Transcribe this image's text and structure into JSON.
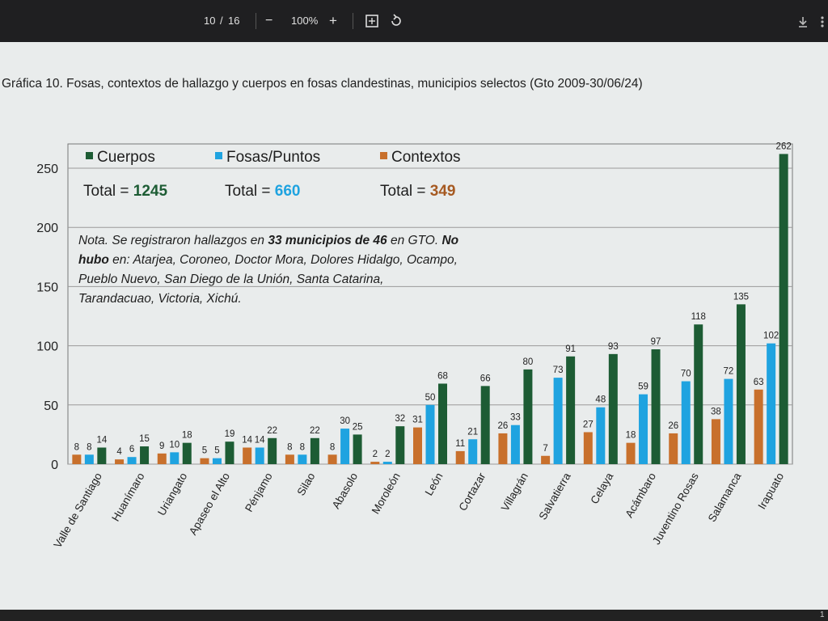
{
  "viewer": {
    "page_current": "10",
    "page_sep": "/",
    "page_total": "16",
    "zoom_out": "−",
    "zoom_level": "100%",
    "zoom_in": "+",
    "corner_digit": "1"
  },
  "chart_data": {
    "type": "bar",
    "title": "Gráfica 10. Fosas, contextos de hallazgo y cuerpos en fosas clandestinas, municipios selectos (Gto 2009-30/06/24)",
    "ylim": [
      0,
      270
    ],
    "yticks": [
      0,
      50,
      100,
      150,
      200,
      250
    ],
    "grid": true,
    "legend_position": "top-left",
    "categories": [
      "Valle de Santiago",
      "Huanímaro",
      "Uriangato",
      "Apaseo el Alto",
      "Pénjamo",
      "Silao",
      "Abasolo",
      "Moroleón",
      "León",
      "Cortazar",
      "Villagrán",
      "Salvatierra",
      "Celaya",
      "Acámbaro",
      "Juventino Rosas",
      "Salamanca",
      "Irapuato"
    ],
    "series": [
      {
        "name": "Contextos",
        "color": "#c8702c",
        "values": [
          8,
          4,
          9,
          5,
          14,
          8,
          8,
          2,
          31,
          11,
          26,
          7,
          27,
          18,
          26,
          38,
          63
        ]
      },
      {
        "name": "Fosas/Puntos",
        "color": "#1fa3e0",
        "values": [
          8,
          6,
          10,
          5,
          14,
          8,
          30,
          2,
          50,
          21,
          33,
          73,
          48,
          59,
          70,
          72,
          102
        ]
      },
      {
        "name": "Cuerpos",
        "color": "#1d5c34",
        "values": [
          14,
          15,
          18,
          19,
          22,
          22,
          25,
          32,
          68,
          66,
          80,
          91,
          93,
          97,
          118,
          135,
          262
        ]
      }
    ],
    "legend": [
      {
        "name": "Cuerpos",
        "color": "#1d5c34"
      },
      {
        "name": "Fosas/Puntos",
        "color": "#1fa3e0"
      },
      {
        "name": "Contextos",
        "color": "#c8702c"
      }
    ],
    "totals": [
      {
        "label": "Total = ",
        "value": "1245",
        "color": "#1d5c34"
      },
      {
        "label": "Total = ",
        "value": "660",
        "color": "#1fa3e0"
      },
      {
        "label": "Total = ",
        "value": "349",
        "color": "#a65a22"
      }
    ],
    "note_lines": [
      [
        {
          "t": "Nota. Se registraron hallazgos en ",
          "b": false
        },
        {
          "t": "33 municipios de 46",
          "b": true
        },
        {
          "t": " en GTO. ",
          "b": false
        },
        {
          "t": "No",
          "b": true
        }
      ],
      [
        {
          "t": "hubo",
          "b": true
        },
        {
          "t": " en: Atarjea, Coroneo, Doctor Mora, Dolores Hidalgo, Ocampo,",
          "b": false
        }
      ],
      [
        {
          "t": "Pueblo Nuevo, San Diego de la Unión, Santa Catarina,",
          "b": false
        }
      ],
      [
        {
          "t": "Tarandacuao, Victoria, Xichú.",
          "b": false
        }
      ]
    ]
  }
}
